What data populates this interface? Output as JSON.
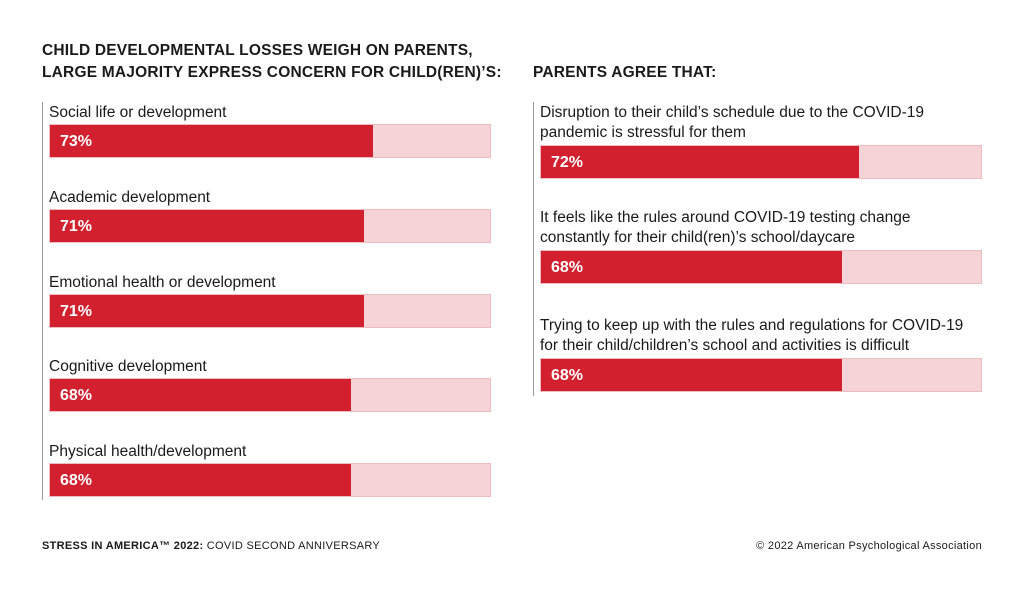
{
  "chart_data": [
    {
      "type": "bar",
      "title": "CHILD DEVELOPMENTAL LOSSES WEIGH ON PARENTS, LARGE MAJORITY EXPRESS CONCERN FOR CHILD(REN)’S:",
      "categories": [
        "Social life or development",
        "Academic development",
        "Emotional health or development",
        "Cognitive development",
        "Physical health/development"
      ],
      "values": [
        73,
        71,
        71,
        68,
        68
      ],
      "value_labels": [
        "73%",
        "71%",
        "71%",
        "68%",
        "68%"
      ],
      "ylim": [
        0,
        100
      ],
      "orientation": "horizontal",
      "grid": false
    },
    {
      "type": "bar",
      "title": "PARENTS AGREE THAT:",
      "categories": [
        "Disruption to their child’s schedule due to the COVID-19 pandemic is stressful for them",
        "It feels like the rules around COVID-19 testing change constantly for their child(ren)’s school/daycare",
        "Trying to keep up with the rules and regulations for COVID-19 for their child/children’s school and activities is difficult"
      ],
      "values": [
        72,
        68,
        68
      ],
      "value_labels": [
        "72%",
        "68%",
        "68%"
      ],
      "ylim": [
        0,
        100
      ],
      "orientation": "horizontal",
      "grid": false
    }
  ],
  "footer": {
    "left_bold": "STRESS IN AMERICA™ 2022:",
    "left_rest": " COVID SECOND ANNIVERSARY",
    "right": "© 2022 American Psychological Association"
  },
  "colors": {
    "fill": "#d3202e",
    "track": "#f5d3d6"
  }
}
